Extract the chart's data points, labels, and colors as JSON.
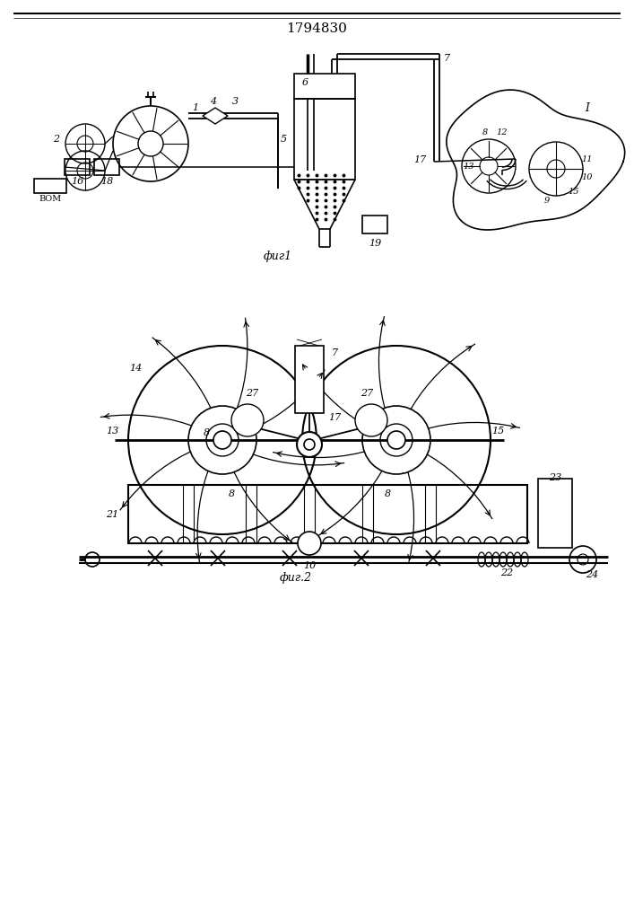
{
  "title": "1794830",
  "title_fontsize": 11,
  "fig1_label": "фиг1",
  "fig2_label": "фиг.2",
  "bg_color": "#ffffff",
  "line_color": "#000000"
}
